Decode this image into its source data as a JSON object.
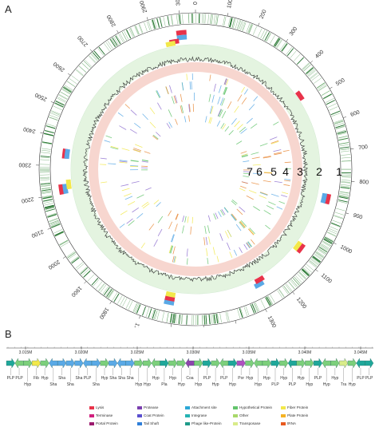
{
  "panel_a": {
    "letter": "A",
    "ring_numbers": [
      "1",
      "2",
      "3",
      "4",
      "5",
      "6",
      "7"
    ],
    "tick_labels": [
      "0",
      "100",
      "200",
      "300",
      "400",
      "500",
      "600",
      "700",
      "800",
      "900",
      "1000",
      "1100",
      "1200",
      "1300",
      "1400",
      "1500",
      "1600",
      "1700",
      "1800",
      "1900",
      "2000",
      "2100",
      "2200",
      "2300",
      "2400",
      "2500",
      "2600",
      "2700",
      "2800",
      "2900",
      "3000"
    ],
    "scale_max": 3050
  },
  "panel_b": {
    "letter": "B",
    "axis_labels": [
      "3.015M",
      "3.020M",
      "3.025M",
      "3.030M",
      "3.035M",
      "3.040M",
      "3.045M"
    ],
    "genes": [
      {
        "label": "PLP",
        "row": "top",
        "color": "#1fa79a"
      },
      {
        "label": "PLP",
        "row": "top",
        "color": "#7ccf7b"
      },
      {
        "label": "Hyp",
        "row": "bottom",
        "color": "#7ccf7b"
      },
      {
        "label": "Fib",
        "row": "top",
        "color": "#f2e84a"
      },
      {
        "label": "Hyp",
        "row": "top",
        "color": "#7ccf7b"
      },
      {
        "label": "Sha",
        "row": "bottom",
        "color": "#5aa9e6"
      },
      {
        "label": "Sha",
        "row": "top",
        "color": "#5aa9e6"
      },
      {
        "label": "Sha",
        "row": "bottom",
        "color": "#5aa9e6"
      },
      {
        "label": "Sha",
        "row": "top",
        "color": "#5aa9e6"
      },
      {
        "label": "PLP",
        "row": "top",
        "color": "#5aa9e6"
      },
      {
        "label": "Sha",
        "row": "bottom",
        "color": "#5aa9e6"
      },
      {
        "label": "Hyp",
        "row": "top",
        "color": "#7ccf7b"
      },
      {
        "label": "Sha",
        "row": "top",
        "color": "#5aa9e6"
      },
      {
        "label": "Sha",
        "row": "top",
        "color": "#5aa9e6"
      },
      {
        "label": "Sha",
        "row": "top",
        "color": "#5aa9e6"
      },
      {
        "label": "Hyp",
        "row": "bottom",
        "color": "#7ccf7b"
      },
      {
        "label": "Hyp",
        "row": "bottom",
        "color": "#7ccf7b"
      },
      {
        "label": "Hyp",
        "row": "top",
        "color": "#7ccf7b"
      },
      {
        "label": "Pla",
        "row": "bottom",
        "color": "#1fa79a"
      },
      {
        "label": "Hyp",
        "row": "top",
        "color": "#7ccf7b"
      },
      {
        "label": "Hyp",
        "row": "bottom",
        "color": "#7ccf7b"
      },
      {
        "label": "Coa",
        "row": "top",
        "color": "#8e44ad"
      },
      {
        "label": "Hyp",
        "row": "bottom",
        "color": "#7ccf7b"
      },
      {
        "label": "PLP",
        "row": "top",
        "color": "#1fa79a"
      },
      {
        "label": "Hyp",
        "row": "bottom",
        "color": "#7ccf7b"
      },
      {
        "label": "PLP",
        "row": "top",
        "color": "#7ccf7b"
      },
      {
        "label": "Hyp",
        "row": "bottom",
        "color": "#1fa79a"
      },
      {
        "label": "Por",
        "row": "top",
        "color": "#b050c0"
      },
      {
        "label": "Hyp",
        "row": "top",
        "color": "#7ccf7b"
      },
      {
        "label": "Hyp",
        "row": "bottom",
        "color": "#7ccf7b"
      },
      {
        "label": "Hyp",
        "row": "top",
        "color": "#7ccf7b"
      },
      {
        "label": "PLP",
        "row": "bottom",
        "color": "#1fa79a"
      },
      {
        "label": "Hyp",
        "row": "top",
        "color": "#7ccf7b"
      },
      {
        "label": "PLP",
        "row": "bottom",
        "color": "#1fa79a"
      },
      {
        "label": "Hyp",
        "row": "top",
        "color": "#7ccf7b"
      },
      {
        "label": "Hyp",
        "row": "bottom",
        "color": "#7ccf7b"
      },
      {
        "label": "PLP",
        "row": "top",
        "color": "#1fa79a"
      },
      {
        "label": "Hyp",
        "row": "bottom",
        "color": "#7ccf7b"
      },
      {
        "label": "Hyp",
        "row": "top",
        "color": "#7ccf7b"
      },
      {
        "label": "Tra",
        "row": "bottom",
        "color": "#d9ec8a"
      },
      {
        "label": "Hyp",
        "row": "bottom",
        "color": "#7ccf7b"
      },
      {
        "label": "PLP",
        "row": "top",
        "color": "#1fa79a"
      },
      {
        "label": "PLP",
        "row": "top",
        "color": "#1fa79a"
      }
    ],
    "legend": [
      {
        "label": "Lysis",
        "color": "#e8334a"
      },
      {
        "label": "Terminase",
        "color": "#d1207e"
      },
      {
        "label": "Portal Protein",
        "color": "#9c1a6e"
      },
      {
        "label": "Protease",
        "color": "#7b3fb0"
      },
      {
        "label": "Coat Protein",
        "color": "#5a4fcf"
      },
      {
        "label": "Tail Shaft",
        "color": "#2f7fd9"
      },
      {
        "label": "Attachment site",
        "color": "#2ba7d6"
      },
      {
        "label": "Integrase",
        "color": "#25b3b3"
      },
      {
        "label": "Phage like-Protein",
        "color": "#1f9b8a"
      },
      {
        "label": "Hypothetical Protein",
        "color": "#63c46c"
      },
      {
        "label": "Other",
        "color": "#a8d86a"
      },
      {
        "label": "Transposase",
        "color": "#d9ec8a"
      },
      {
        "label": "Fiber Protein",
        "color": "#f2e84a"
      },
      {
        "label": "Plate Protein",
        "color": "#f5b324"
      },
      {
        "label": "tRNA",
        "color": "#e85a1f"
      }
    ]
  }
}
